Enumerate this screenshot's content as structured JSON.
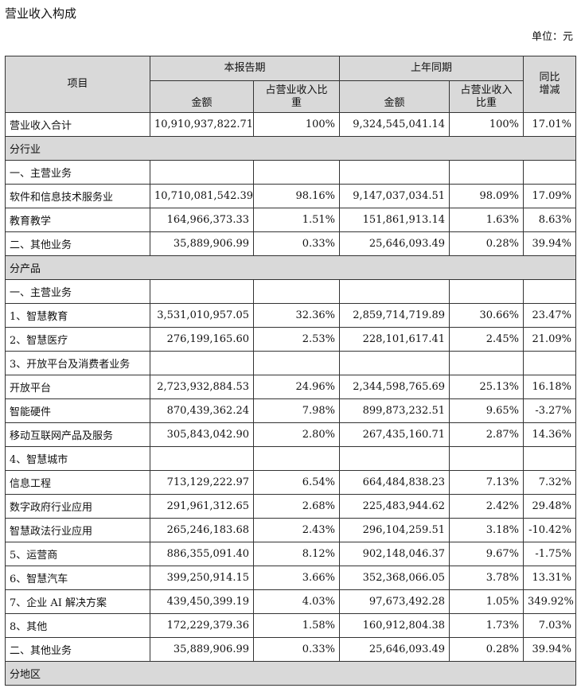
{
  "title": "营业收入构成",
  "unit": "单位：元",
  "header": {
    "item": "项目",
    "current_period": "本报告期",
    "prior_period": "上年同期",
    "amount": "金额",
    "share_line1": "占营业收入比",
    "share_line2": "重",
    "prior_share_line1": "占营业收入",
    "prior_share_line2": "比重",
    "yoy_line1": "同比",
    "yoy_line2": "增减"
  },
  "rows": [
    {
      "type": "total",
      "label": "营业收入合计",
      "cur": "10,910,937,822.71",
      "cur_pct": "100%",
      "prev": "9,324,545,041.14",
      "prev_pct": "100%",
      "yoy": "17.01%"
    },
    {
      "type": "section",
      "label": "分行业"
    },
    {
      "type": "data",
      "label": "一、主营业务",
      "cur": "",
      "cur_pct": "",
      "prev": "",
      "prev_pct": "",
      "yoy": ""
    },
    {
      "type": "data",
      "label": "软件和信息技术服务业",
      "cur": "10,710,081,542.39",
      "cur_pct": "98.16%",
      "prev": "9,147,037,034.51",
      "prev_pct": "98.09%",
      "yoy": "17.09%"
    },
    {
      "type": "data",
      "label": "教育教学",
      "cur": "164,966,373.33",
      "cur_pct": "1.51%",
      "prev": "151,861,913.14",
      "prev_pct": "1.63%",
      "yoy": "8.63%"
    },
    {
      "type": "data",
      "label": "二、其他业务",
      "cur": "35,889,906.99",
      "cur_pct": "0.33%",
      "prev": "25,646,093.49",
      "prev_pct": "0.28%",
      "yoy": "39.94%"
    },
    {
      "type": "section",
      "label": "分产品"
    },
    {
      "type": "data",
      "label": "一、主营业务",
      "cur": "",
      "cur_pct": "",
      "prev": "",
      "prev_pct": "",
      "yoy": ""
    },
    {
      "type": "data",
      "label": "1、智慧教育",
      "cur": "3,531,010,957.05",
      "cur_pct": "32.36%",
      "prev": "2,859,714,719.89",
      "prev_pct": "30.66%",
      "yoy": "23.47%"
    },
    {
      "type": "data",
      "label": "2、智慧医疗",
      "cur": "276,199,165.60",
      "cur_pct": "2.53%",
      "prev": "228,101,617.41",
      "prev_pct": "2.45%",
      "yoy": "21.09%"
    },
    {
      "type": "data",
      "label": "3、开放平台及消费者业务",
      "cur": "",
      "cur_pct": "",
      "prev": "",
      "prev_pct": "",
      "yoy": ""
    },
    {
      "type": "data",
      "label": "开放平台",
      "cur": "2,723,932,884.53",
      "cur_pct": "24.96%",
      "prev": "2,344,598,765.69",
      "prev_pct": "25.13%",
      "yoy": "16.18%"
    },
    {
      "type": "data",
      "label": "智能硬件",
      "cur": "870,439,362.24",
      "cur_pct": "7.98%",
      "prev": "899,873,232.51",
      "prev_pct": "9.65%",
      "yoy": "-3.27%"
    },
    {
      "type": "data",
      "label": "移动互联网产品及服务",
      "cur": "305,843,042.90",
      "cur_pct": "2.80%",
      "prev": "267,435,160.71",
      "prev_pct": "2.87%",
      "yoy": "14.36%"
    },
    {
      "type": "data",
      "label": "4、智慧城市",
      "cur": "",
      "cur_pct": "",
      "prev": "",
      "prev_pct": "",
      "yoy": ""
    },
    {
      "type": "data",
      "label": "信息工程",
      "cur": "713,129,222.97",
      "cur_pct": "6.54%",
      "prev": "664,484,838.23",
      "prev_pct": "7.13%",
      "yoy": "7.32%"
    },
    {
      "type": "data",
      "label": "数字政府行业应用",
      "cur": "291,961,312.65",
      "cur_pct": "2.68%",
      "prev": "225,483,944.62",
      "prev_pct": "2.42%",
      "yoy": "29.48%"
    },
    {
      "type": "data",
      "label": "智慧政法行业应用",
      "cur": "265,246,183.68",
      "cur_pct": "2.43%",
      "prev": "296,104,259.51",
      "prev_pct": "3.18%",
      "yoy": "-10.42%"
    },
    {
      "type": "data",
      "label": "5、运营商",
      "cur": "886,355,091.40",
      "cur_pct": "8.12%",
      "prev": "902,148,046.37",
      "prev_pct": "9.67%",
      "yoy": "-1.75%"
    },
    {
      "type": "data",
      "label": "6、智慧汽车",
      "cur": "399,250,914.15",
      "cur_pct": "3.66%",
      "prev": "352,368,066.05",
      "prev_pct": "3.78%",
      "yoy": "13.31%"
    },
    {
      "type": "data",
      "label": "7、企业 AI 解决方案",
      "cur": "439,450,399.19",
      "cur_pct": "4.03%",
      "prev": "97,673,492.28",
      "prev_pct": "1.05%",
      "yoy": "349.92%"
    },
    {
      "type": "data",
      "label": "8、其他",
      "cur": "172,229,379.36",
      "cur_pct": "1.58%",
      "prev": "160,912,804.38",
      "prev_pct": "1.73%",
      "yoy": "7.03%"
    },
    {
      "type": "data",
      "label": "二、其他业务",
      "cur": "35,889,906.99",
      "cur_pct": "0.33%",
      "prev": "25,646,093.49",
      "prev_pct": "0.28%",
      "yoy": "39.94%"
    },
    {
      "type": "section",
      "label": "分地区"
    }
  ]
}
